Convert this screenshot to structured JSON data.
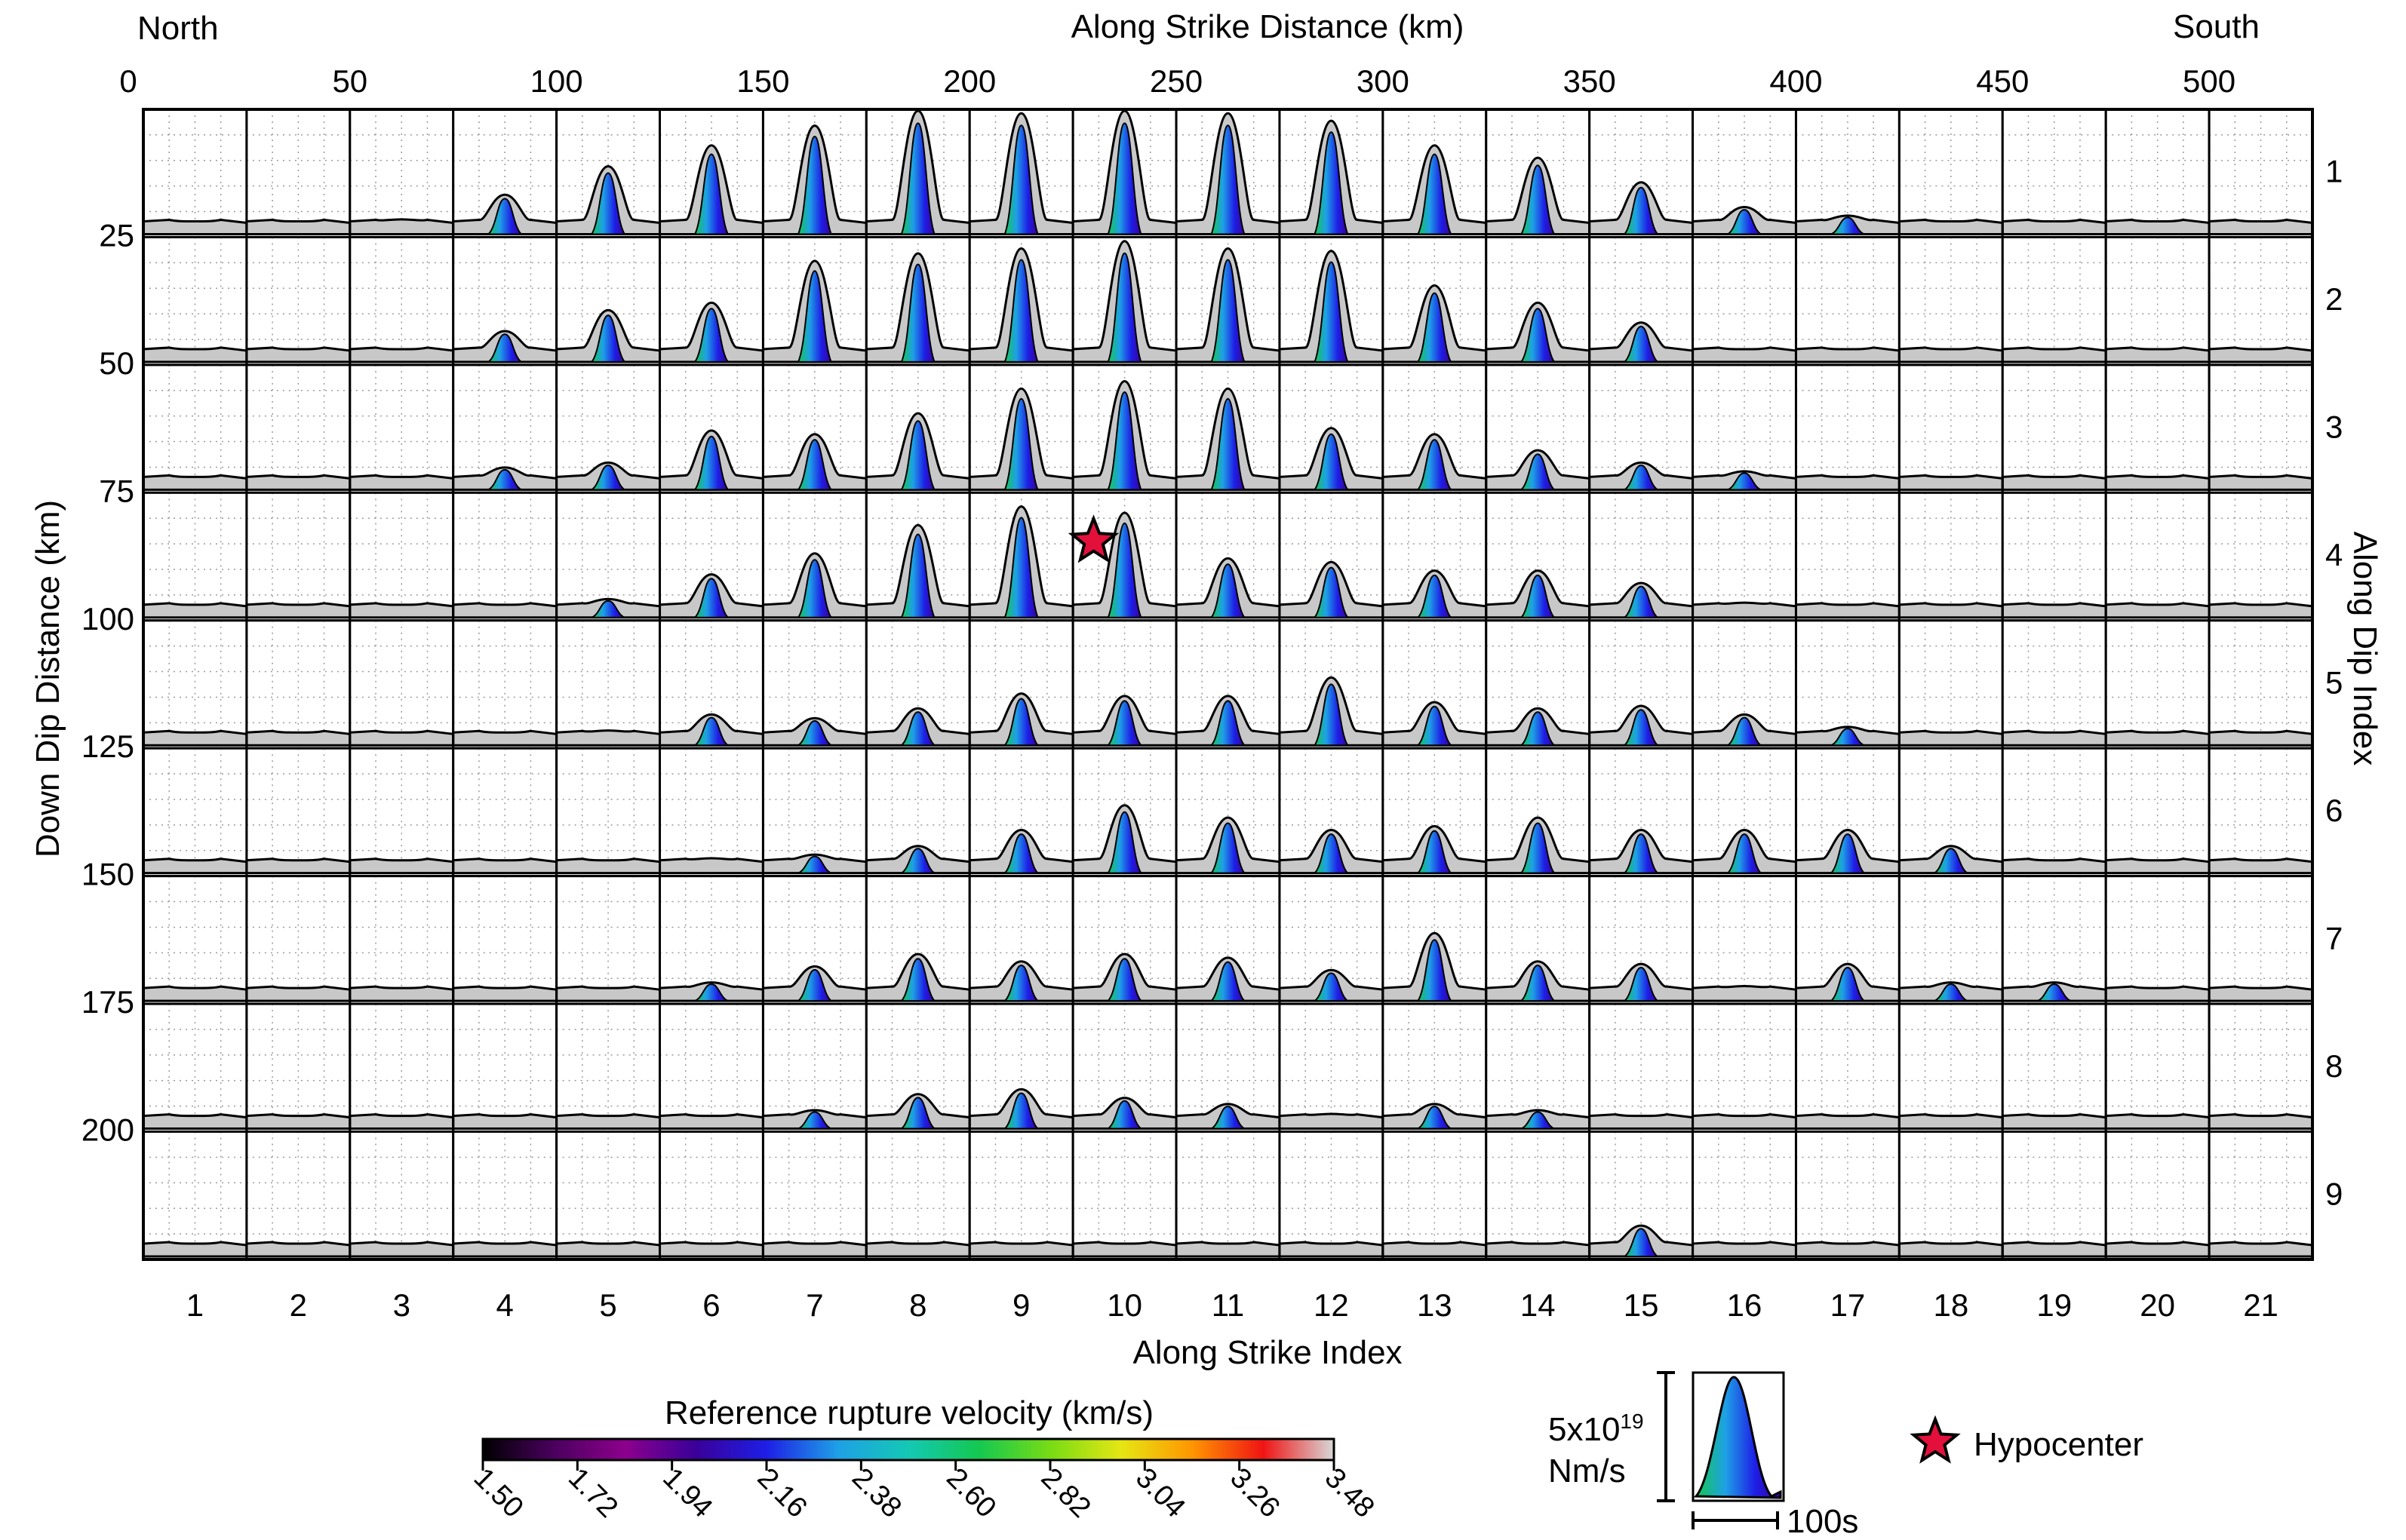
{
  "chart_data": {
    "type": "area",
    "title": "",
    "corner_labels": {
      "left": "North",
      "right": "South"
    },
    "top_axis": {
      "label": "Along Strike Distance (km)",
      "ticks": [
        0,
        50,
        100,
        150,
        200,
        250,
        300,
        350,
        400,
        450,
        500
      ],
      "range": [
        0,
        525
      ]
    },
    "left_axis": {
      "label": "Down Dip Distance (km)",
      "ticks": [
        25,
        50,
        75,
        100,
        125,
        150,
        175,
        200
      ],
      "range": [
        0,
        225
      ]
    },
    "bottom_axis": {
      "label": "Along Strike Index",
      "ticks": [
        "1",
        "2",
        "3",
        "4",
        "5",
        "6",
        "7",
        "8",
        "9",
        "10",
        "11",
        "12",
        "13",
        "14",
        "15",
        "16",
        "17",
        "18",
        "19",
        "20",
        "21"
      ]
    },
    "right_axis": {
      "label": "Along Dip Index",
      "ticks": [
        "1",
        "2",
        "3",
        "4",
        "5",
        "6",
        "7",
        "8",
        "9"
      ]
    },
    "grid": {
      "columns": 21,
      "rows": 9,
      "dotted_minor_grid": true
    },
    "moment_rate_peaks": [
      [
        0.05,
        0.05,
        0.12,
        0.32,
        0.55,
        0.72,
        0.88,
        1.0,
        0.98,
        1.0,
        0.98,
        0.92,
        0.72,
        0.62,
        0.42,
        0.22,
        0.15,
        0.1,
        0.05,
        0.05,
        0.05
      ],
      [
        0.05,
        0.05,
        0.08,
        0.25,
        0.42,
        0.48,
        0.82,
        0.88,
        0.92,
        0.98,
        0.92,
        0.9,
        0.62,
        0.48,
        0.32,
        0.1,
        0.05,
        0.05,
        0.05,
        0.05,
        0.05
      ],
      [
        0.05,
        0.05,
        0.05,
        0.18,
        0.22,
        0.48,
        0.45,
        0.62,
        0.82,
        0.88,
        0.82,
        0.5,
        0.45,
        0.32,
        0.22,
        0.15,
        0.1,
        0.1,
        0.05,
        0.05,
        0.05
      ],
      [
        0.05,
        0.05,
        0.05,
        0.08,
        0.15,
        0.35,
        0.52,
        0.75,
        0.9,
        0.85,
        0.48,
        0.45,
        0.38,
        0.38,
        0.28,
        0.12,
        0.08,
        0.05,
        0.05,
        0.05,
        0.05
      ],
      [
        0.05,
        0.05,
        0.05,
        0.05,
        0.12,
        0.25,
        0.22,
        0.3,
        0.42,
        0.4,
        0.4,
        0.55,
        0.35,
        0.3,
        0.32,
        0.25,
        0.15,
        0.1,
        0.05,
        0.05,
        0.05
      ],
      [
        0.05,
        0.05,
        0.05,
        0.05,
        0.08,
        0.12,
        0.15,
        0.22,
        0.35,
        0.55,
        0.45,
        0.35,
        0.38,
        0.45,
        0.35,
        0.35,
        0.35,
        0.22,
        0.08,
        0.05,
        0.05
      ],
      [
        0.05,
        0.05,
        0.05,
        0.05,
        0.08,
        0.15,
        0.28,
        0.38,
        0.32,
        0.38,
        0.35,
        0.25,
        0.55,
        0.32,
        0.3,
        0.12,
        0.3,
        0.15,
        0.15,
        0.05,
        0.05
      ],
      [
        0.05,
        0.05,
        0.08,
        0.05,
        0.1,
        0.08,
        0.15,
        0.28,
        0.32,
        0.25,
        0.2,
        0.12,
        0.2,
        0.15,
        0.1,
        0.08,
        0.05,
        0.05,
        0.05,
        0.05,
        0.05
      ],
      [
        0.1,
        0.1,
        0.1,
        0.1,
        0.1,
        0.1,
        0.1,
        0.1,
        0.1,
        0.1,
        0.1,
        0.1,
        0.1,
        0.1,
        0.25,
        0.1,
        0.1,
        0.1,
        0.1,
        0.1,
        0.1
      ]
    ],
    "hypocenter": {
      "strike_index": 9.7,
      "dip_index": 4,
      "marker": "red-star"
    },
    "colorbar": {
      "title": "Reference rupture velocity (km/s)",
      "ticks": [
        "1.50",
        "1.72",
        "1.94",
        "2.16",
        "2.38",
        "2.60",
        "2.82",
        "3.04",
        "3.26",
        "3.48"
      ],
      "range": [
        1.5,
        3.48
      ],
      "stops": [
        "#000000",
        "#4a005e",
        "#8c008c",
        "#3a0099",
        "#1e1ee6",
        "#1ea0e6",
        "#14c8b4",
        "#14c850",
        "#78dc14",
        "#e6e614",
        "#ff9600",
        "#f01414",
        "#d8d8d8"
      ]
    },
    "scale_legend": {
      "amplitude_line1": "5x10",
      "amplitude_exponent": "19",
      "amplitude_unit": "Nm/s",
      "time": "100s"
    },
    "legend": {
      "hypocenter_label": "Hypocenter"
    }
  }
}
